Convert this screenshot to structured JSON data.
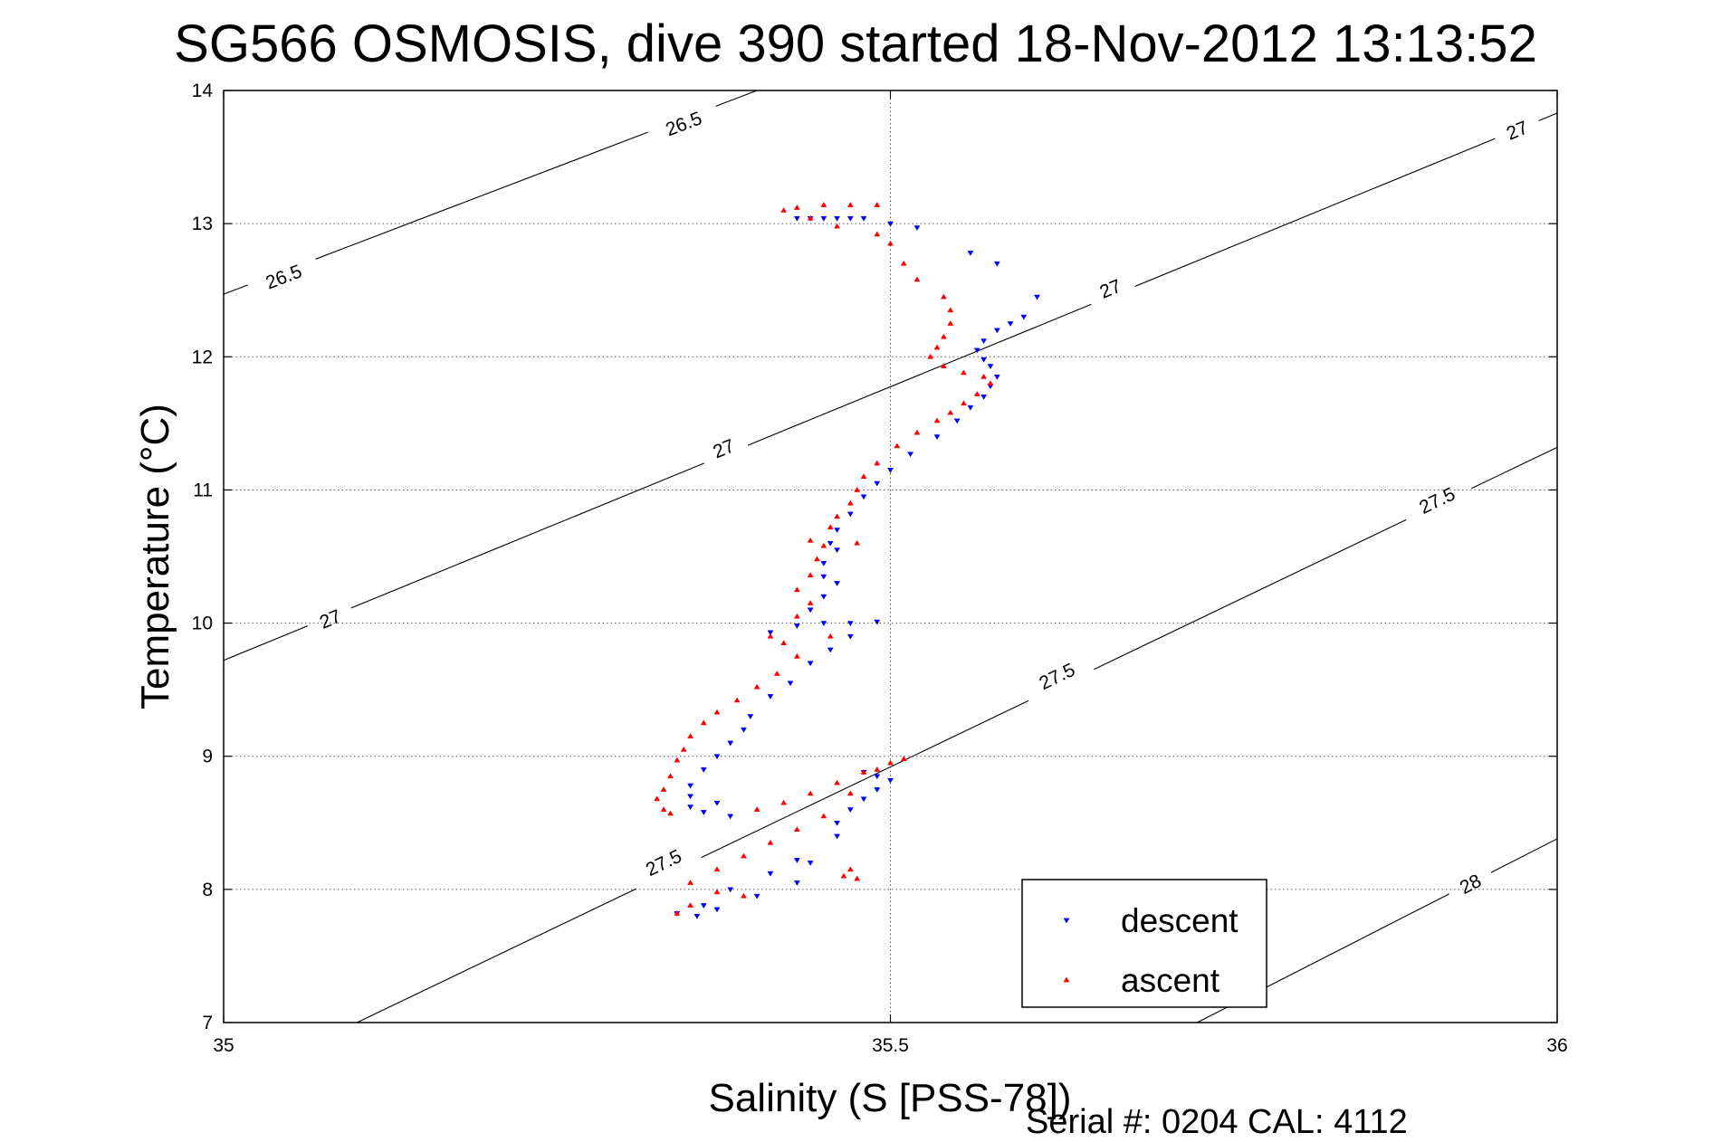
{
  "chart_data": {
    "type": "scatter",
    "title": "SG566 OSMOSIS, dive 390 started 18-Nov-2012 13:13:52",
    "xlabel": "Salinity (S [PSS-78])",
    "ylabel": "Temperature (°C)",
    "xlim": [
      35,
      36
    ],
    "ylim": [
      7,
      14
    ],
    "x_ticks": [
      "35",
      "35.5",
      "36"
    ],
    "y_ticks": [
      "7",
      "8",
      "9",
      "10",
      "11",
      "12",
      "13",
      "14"
    ],
    "grid": true,
    "legend_position": "bottom-right",
    "footer": "Serial #: 0204  CAL: 4112",
    "density_contours": [
      {
        "label": "26.5",
        "points": [
          [
            35.0,
            12.47
          ],
          [
            35.4,
            14.0
          ]
        ],
        "label_positions": [
          [
            35.045,
            12.6
          ],
          [
            35.345,
            13.75
          ]
        ]
      },
      {
        "label": "27",
        "points": [
          [
            35.0,
            9.72
          ],
          [
            36.0,
            13.83
          ]
        ],
        "label_positions": [
          [
            35.08,
            10.03
          ],
          [
            35.375,
            11.31
          ],
          [
            35.665,
            12.51
          ],
          [
            35.97,
            13.7
          ]
        ]
      },
      {
        "label": "27.5",
        "points": [
          [
            35.1,
            7.0
          ],
          [
            36.0,
            11.32
          ]
        ],
        "label_positions": [
          [
            35.33,
            8.2
          ],
          [
            35.625,
            9.6
          ],
          [
            35.91,
            10.92
          ]
        ]
      },
      {
        "label": "28",
        "points": [
          [
            35.73,
            7.0
          ],
          [
            36.0,
            8.38
          ]
        ],
        "label_positions": [
          [
            35.935,
            8.04
          ]
        ]
      }
    ],
    "series": [
      {
        "name": "descent",
        "color": "#0000ff",
        "marker": "triangle-down",
        "points": [
          [
            35.43,
            13.04
          ],
          [
            35.44,
            13.04
          ],
          [
            35.45,
            13.04
          ],
          [
            35.46,
            13.04
          ],
          [
            35.47,
            13.04
          ],
          [
            35.48,
            13.04
          ],
          [
            35.5,
            13.0
          ],
          [
            35.52,
            12.97
          ],
          [
            35.56,
            12.78
          ],
          [
            35.58,
            12.7
          ],
          [
            35.61,
            12.45
          ],
          [
            35.6,
            12.3
          ],
          [
            35.59,
            12.25
          ],
          [
            35.58,
            12.2
          ],
          [
            35.57,
            12.12
          ],
          [
            35.565,
            12.05
          ],
          [
            35.57,
            11.98
          ],
          [
            35.575,
            11.93
          ],
          [
            35.58,
            11.85
          ],
          [
            35.575,
            11.78
          ],
          [
            35.57,
            11.7
          ],
          [
            35.56,
            11.62
          ],
          [
            35.55,
            11.52
          ],
          [
            35.535,
            11.4
          ],
          [
            35.515,
            11.27
          ],
          [
            35.5,
            11.15
          ],
          [
            35.49,
            11.05
          ],
          [
            35.48,
            10.95
          ],
          [
            35.47,
            10.82
          ],
          [
            35.46,
            10.7
          ],
          [
            35.455,
            10.6
          ],
          [
            35.46,
            10.55
          ],
          [
            35.45,
            10.45
          ],
          [
            35.45,
            10.35
          ],
          [
            35.46,
            10.3
          ],
          [
            35.45,
            10.2
          ],
          [
            35.44,
            10.1
          ],
          [
            35.45,
            10.0
          ],
          [
            35.47,
            10.0
          ],
          [
            35.49,
            10.01
          ],
          [
            35.43,
            9.98
          ],
          [
            35.41,
            9.93
          ],
          [
            35.47,
            9.9
          ],
          [
            35.455,
            9.8
          ],
          [
            35.44,
            9.7
          ],
          [
            35.425,
            9.55
          ],
          [
            35.41,
            9.45
          ],
          [
            35.395,
            9.3
          ],
          [
            35.39,
            9.2
          ],
          [
            35.38,
            9.1
          ],
          [
            35.37,
            9.0
          ],
          [
            35.36,
            8.9
          ],
          [
            35.35,
            8.78
          ],
          [
            35.35,
            8.7
          ],
          [
            35.37,
            8.65
          ],
          [
            35.38,
            8.55
          ],
          [
            35.36,
            8.58
          ],
          [
            35.35,
            8.62
          ],
          [
            35.48,
            8.88
          ],
          [
            35.49,
            8.85
          ],
          [
            35.5,
            8.82
          ],
          [
            35.49,
            8.75
          ],
          [
            35.48,
            8.68
          ],
          [
            35.47,
            8.6
          ],
          [
            35.46,
            8.5
          ],
          [
            35.46,
            8.4
          ],
          [
            35.43,
            8.22
          ],
          [
            35.44,
            8.2
          ],
          [
            35.41,
            8.12
          ],
          [
            35.43,
            8.05
          ],
          [
            35.38,
            8.0
          ],
          [
            35.4,
            7.95
          ],
          [
            35.36,
            7.88
          ],
          [
            35.34,
            7.82
          ],
          [
            35.355,
            7.8
          ],
          [
            35.37,
            7.85
          ]
        ]
      },
      {
        "name": "ascent",
        "color": "#ff0000",
        "marker": "triangle-up",
        "points": [
          [
            35.42,
            13.1
          ],
          [
            35.43,
            13.12
          ],
          [
            35.45,
            13.14
          ],
          [
            35.47,
            13.14
          ],
          [
            35.49,
            13.14
          ],
          [
            35.44,
            13.04
          ],
          [
            35.46,
            12.98
          ],
          [
            35.49,
            12.92
          ],
          [
            35.5,
            12.85
          ],
          [
            35.51,
            12.7
          ],
          [
            35.52,
            12.58
          ],
          [
            35.54,
            12.45
          ],
          [
            35.545,
            12.35
          ],
          [
            35.545,
            12.25
          ],
          [
            35.54,
            12.15
          ],
          [
            35.535,
            12.07
          ],
          [
            35.53,
            12.0
          ],
          [
            35.54,
            11.93
          ],
          [
            35.555,
            11.88
          ],
          [
            35.57,
            11.85
          ],
          [
            35.575,
            11.8
          ],
          [
            35.565,
            11.72
          ],
          [
            35.555,
            11.65
          ],
          [
            35.545,
            11.58
          ],
          [
            35.535,
            11.52
          ],
          [
            35.52,
            11.43
          ],
          [
            35.505,
            11.33
          ],
          [
            35.49,
            11.2
          ],
          [
            35.48,
            11.1
          ],
          [
            35.475,
            11.0
          ],
          [
            35.47,
            10.9
          ],
          [
            35.46,
            10.8
          ],
          [
            35.455,
            10.72
          ],
          [
            35.44,
            10.62
          ],
          [
            35.45,
            10.58
          ],
          [
            35.475,
            10.6
          ],
          [
            35.445,
            10.48
          ],
          [
            35.44,
            10.36
          ],
          [
            35.43,
            10.25
          ],
          [
            35.44,
            10.15
          ],
          [
            35.43,
            10.05
          ],
          [
            35.41,
            9.9
          ],
          [
            35.42,
            9.85
          ],
          [
            35.455,
            9.9
          ],
          [
            35.43,
            9.75
          ],
          [
            35.415,
            9.62
          ],
          [
            35.4,
            9.52
          ],
          [
            35.385,
            9.42
          ],
          [
            35.37,
            9.33
          ],
          [
            35.36,
            9.25
          ],
          [
            35.35,
            9.15
          ],
          [
            35.345,
            9.05
          ],
          [
            35.34,
            8.97
          ],
          [
            35.335,
            8.85
          ],
          [
            35.33,
            8.75
          ],
          [
            35.325,
            8.68
          ],
          [
            35.33,
            8.6
          ],
          [
            35.335,
            8.57
          ],
          [
            35.4,
            8.6
          ],
          [
            35.42,
            8.65
          ],
          [
            35.44,
            8.72
          ],
          [
            35.46,
            8.8
          ],
          [
            35.48,
            8.88
          ],
          [
            35.5,
            8.95
          ],
          [
            35.51,
            8.98
          ],
          [
            35.49,
            8.9
          ],
          [
            35.47,
            8.72
          ],
          [
            35.45,
            8.55
          ],
          [
            35.43,
            8.45
          ],
          [
            35.41,
            8.35
          ],
          [
            35.39,
            8.25
          ],
          [
            35.37,
            8.15
          ],
          [
            35.35,
            8.05
          ],
          [
            35.37,
            7.98
          ],
          [
            35.39,
            7.95
          ],
          [
            35.35,
            7.88
          ],
          [
            35.34,
            7.82
          ],
          [
            35.465,
            8.1
          ],
          [
            35.475,
            8.08
          ],
          [
            35.47,
            8.15
          ]
        ]
      }
    ]
  }
}
